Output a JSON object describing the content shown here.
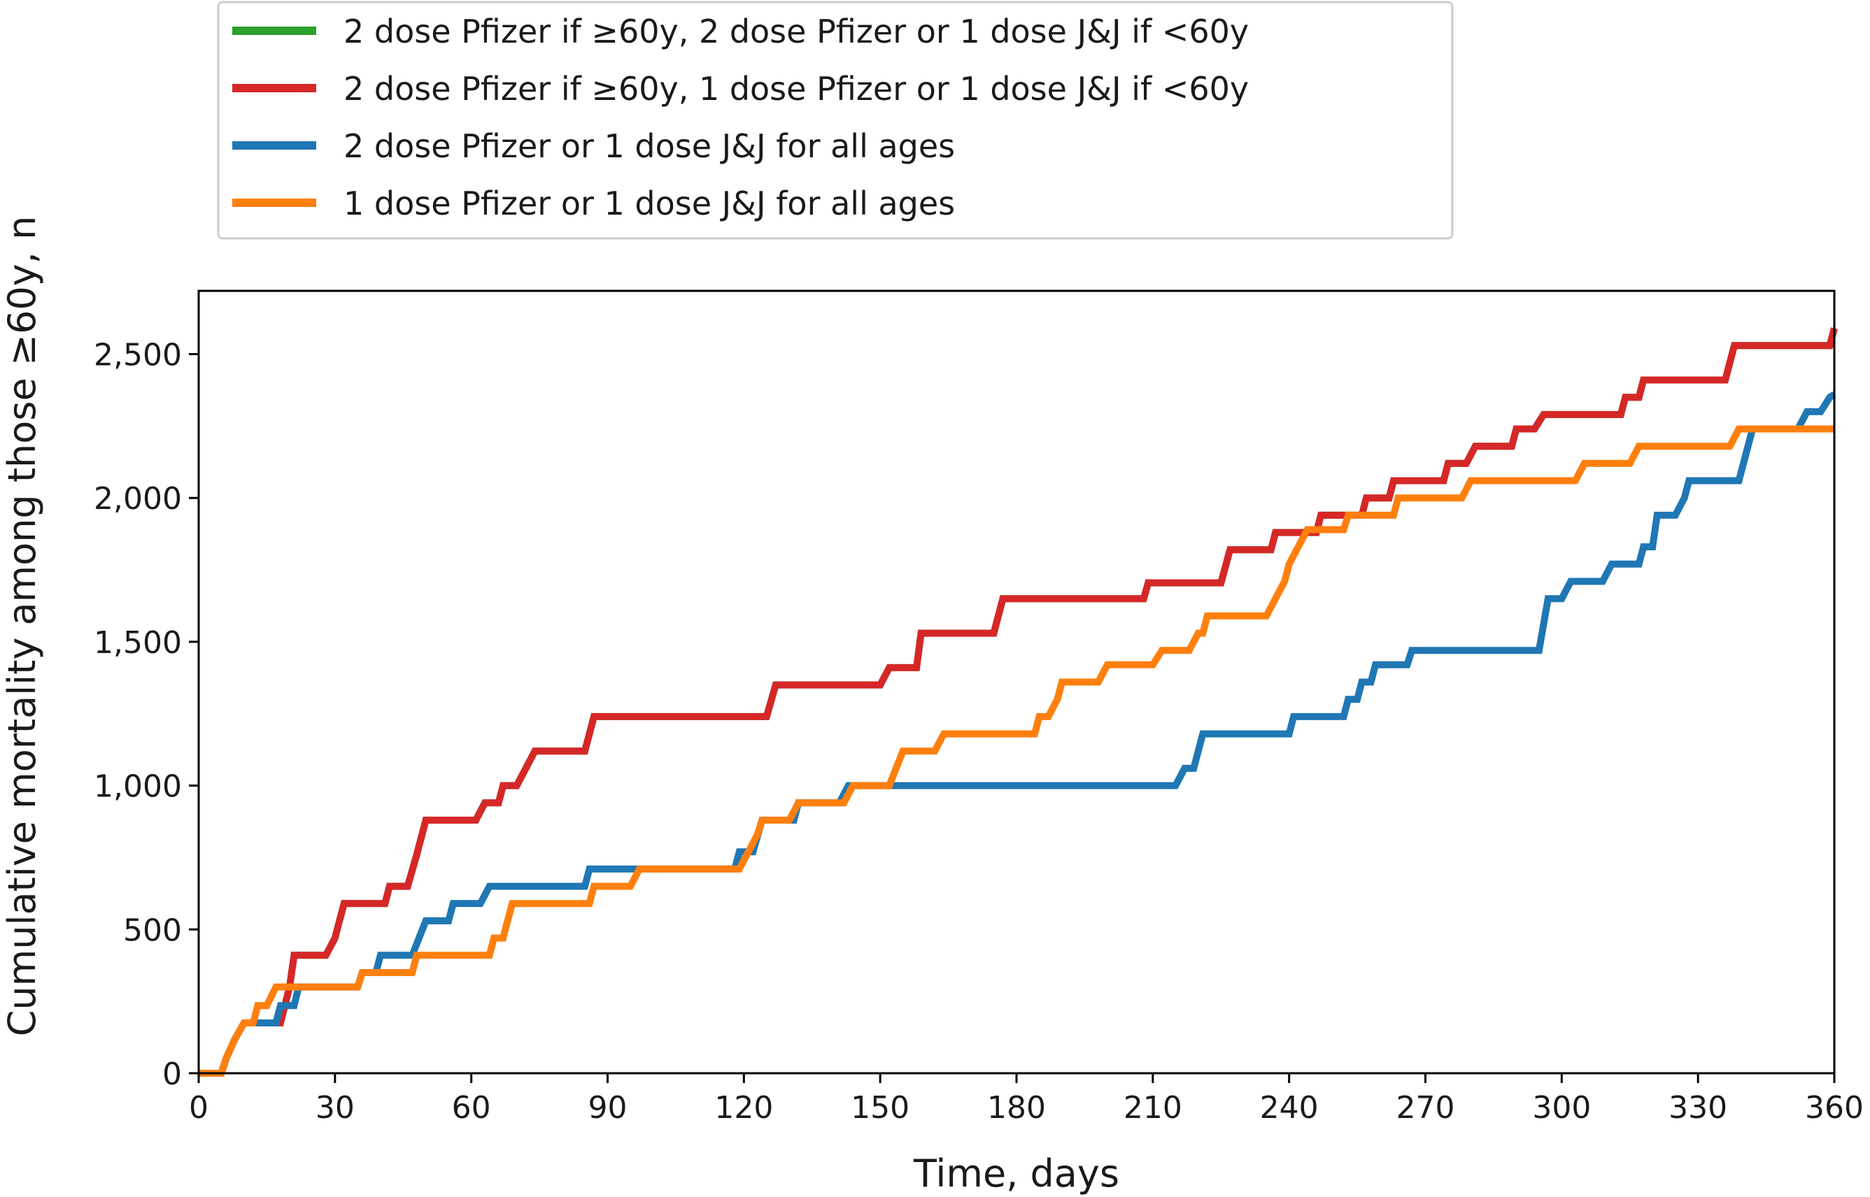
{
  "chart_data": {
    "type": "line",
    "title": "",
    "xlabel": "Time, days",
    "ylabel": "Cumulative mortality among those ≥60y, n",
    "xlim": [
      0,
      360
    ],
    "ylim": [
      0,
      2720
    ],
    "xticks": [
      0,
      30,
      60,
      90,
      120,
      150,
      180,
      210,
      240,
      270,
      300,
      330,
      360
    ],
    "yticks": [
      0,
      500,
      1000,
      1500,
      2000,
      2500
    ],
    "xtick_labels": [
      "0",
      "30",
      "60",
      "90",
      "120",
      "150",
      "180",
      "210",
      "240",
      "270",
      "300",
      "330",
      "360"
    ],
    "ytick_labels": [
      "0",
      "500",
      "1,000",
      "1,500",
      "2,000",
      "2,500"
    ],
    "grid": false,
    "legend_position": "top-left outside",
    "step": true,
    "series": [
      {
        "name": "2 dose Pfizer if ≥60y, 2 dose Pfizer or 1 dose J&J if <60y",
        "color": "#2ca02c",
        "points": [
          [
            0,
            0
          ],
          [
            5,
            0
          ],
          [
            6,
            50
          ],
          [
            8,
            120
          ],
          [
            10,
            175
          ],
          [
            18,
            175
          ],
          [
            20,
            300
          ],
          [
            21,
            410
          ],
          [
            28,
            410
          ],
          [
            30,
            470
          ],
          [
            32,
            590
          ],
          [
            41,
            590
          ],
          [
            42,
            650
          ],
          [
            46,
            650
          ],
          [
            48,
            760
          ],
          [
            50,
            880
          ],
          [
            61,
            880
          ],
          [
            63,
            940
          ],
          [
            66,
            940
          ],
          [
            67,
            1000
          ],
          [
            70,
            1000
          ],
          [
            72,
            1060
          ],
          [
            74,
            1120
          ],
          [
            85,
            1120
          ],
          [
            87,
            1240
          ],
          [
            125,
            1240
          ],
          [
            127,
            1350
          ],
          [
            150,
            1350
          ],
          [
            152,
            1410
          ],
          [
            158,
            1410
          ],
          [
            159,
            1530
          ],
          [
            175,
            1530
          ],
          [
            177,
            1650
          ],
          [
            208,
            1650
          ],
          [
            209,
            1705
          ],
          [
            225,
            1705
          ],
          [
            227,
            1820
          ],
          [
            236,
            1820
          ],
          [
            237,
            1880
          ],
          [
            246,
            1880
          ],
          [
            247,
            1940
          ],
          [
            256,
            1940
          ],
          [
            257,
            2000
          ],
          [
            262,
            2000
          ],
          [
            263,
            2060
          ],
          [
            274,
            2060
          ],
          [
            275,
            2120
          ],
          [
            279,
            2120
          ],
          [
            281,
            2180
          ],
          [
            289,
            2180
          ],
          [
            290,
            2240
          ],
          [
            294,
            2240
          ],
          [
            296,
            2290
          ],
          [
            313,
            2290
          ],
          [
            314,
            2350
          ],
          [
            317,
            2350
          ],
          [
            318,
            2410
          ],
          [
            336,
            2410
          ],
          [
            337,
            2470
          ],
          [
            338,
            2530
          ],
          [
            359,
            2530
          ],
          [
            360,
            2590
          ]
        ]
      },
      {
        "name": "2 dose Pfizer if ≥60y, 1 dose Pfizer or 1 dose J&J if <60y",
        "color": "#d62728",
        "points": [
          [
            0,
            0
          ],
          [
            5,
            0
          ],
          [
            6,
            50
          ],
          [
            8,
            120
          ],
          [
            10,
            175
          ],
          [
            18,
            175
          ],
          [
            20,
            300
          ],
          [
            21,
            410
          ],
          [
            28,
            410
          ],
          [
            30,
            470
          ],
          [
            32,
            590
          ],
          [
            41,
            590
          ],
          [
            42,
            650
          ],
          [
            46,
            650
          ],
          [
            48,
            760
          ],
          [
            50,
            880
          ],
          [
            61,
            880
          ],
          [
            63,
            940
          ],
          [
            66,
            940
          ],
          [
            67,
            1000
          ],
          [
            70,
            1000
          ],
          [
            72,
            1060
          ],
          [
            74,
            1120
          ],
          [
            85,
            1120
          ],
          [
            87,
            1240
          ],
          [
            125,
            1240
          ],
          [
            127,
            1350
          ],
          [
            150,
            1350
          ],
          [
            152,
            1410
          ],
          [
            158,
            1410
          ],
          [
            159,
            1530
          ],
          [
            175,
            1530
          ],
          [
            177,
            1650
          ],
          [
            208,
            1650
          ],
          [
            209,
            1705
          ],
          [
            225,
            1705
          ],
          [
            227,
            1820
          ],
          [
            236,
            1820
          ],
          [
            237,
            1880
          ],
          [
            246,
            1880
          ],
          [
            247,
            1940
          ],
          [
            256,
            1940
          ],
          [
            257,
            2000
          ],
          [
            262,
            2000
          ],
          [
            263,
            2060
          ],
          [
            274,
            2060
          ],
          [
            275,
            2120
          ],
          [
            279,
            2120
          ],
          [
            281,
            2180
          ],
          [
            289,
            2180
          ],
          [
            290,
            2240
          ],
          [
            294,
            2240
          ],
          [
            296,
            2290
          ],
          [
            313,
            2290
          ],
          [
            314,
            2350
          ],
          [
            317,
            2350
          ],
          [
            318,
            2410
          ],
          [
            336,
            2410
          ],
          [
            337,
            2470
          ],
          [
            338,
            2530
          ],
          [
            359,
            2530
          ],
          [
            360,
            2590
          ]
        ]
      },
      {
        "name": "2 dose Pfizer or 1 dose J&J for all ages",
        "color": "#1f77b4",
        "points": [
          [
            0,
            0
          ],
          [
            5,
            0
          ],
          [
            6,
            50
          ],
          [
            8,
            120
          ],
          [
            10,
            175
          ],
          [
            17,
            175
          ],
          [
            18,
            235
          ],
          [
            21,
            235
          ],
          [
            22,
            300
          ],
          [
            35,
            300
          ],
          [
            36,
            350
          ],
          [
            39,
            350
          ],
          [
            40,
            410
          ],
          [
            47,
            410
          ],
          [
            50,
            530
          ],
          [
            55,
            530
          ],
          [
            56,
            590
          ],
          [
            62,
            590
          ],
          [
            64,
            650
          ],
          [
            85,
            650
          ],
          [
            86,
            710
          ],
          [
            118,
            710
          ],
          [
            119,
            770
          ],
          [
            122,
            770
          ],
          [
            124,
            880
          ],
          [
            131,
            880
          ],
          [
            132,
            940
          ],
          [
            141,
            940
          ],
          [
            143,
            1000
          ],
          [
            215,
            1000
          ],
          [
            217,
            1060
          ],
          [
            219,
            1060
          ],
          [
            221,
            1180
          ],
          [
            240,
            1180
          ],
          [
            241,
            1240
          ],
          [
            252,
            1240
          ],
          [
            253,
            1300
          ],
          [
            255,
            1300
          ],
          [
            256,
            1360
          ],
          [
            258,
            1360
          ],
          [
            259,
            1420
          ],
          [
            266,
            1420
          ],
          [
            267,
            1470
          ],
          [
            295,
            1470
          ],
          [
            297,
            1650
          ],
          [
            300,
            1650
          ],
          [
            302,
            1710
          ],
          [
            309,
            1710
          ],
          [
            311,
            1770
          ],
          [
            317,
            1770
          ],
          [
            318,
            1830
          ],
          [
            320,
            1830
          ],
          [
            321,
            1940
          ],
          [
            325,
            1940
          ],
          [
            327,
            2000
          ],
          [
            328,
            2060
          ],
          [
            339,
            2060
          ],
          [
            341,
            2180
          ],
          [
            342,
            2240
          ],
          [
            352,
            2240
          ],
          [
            354,
            2300
          ],
          [
            357,
            2300
          ],
          [
            359,
            2350
          ],
          [
            360,
            2360
          ]
        ]
      },
      {
        "name": "1 dose Pfizer or 1 dose J&J for all ages",
        "color": "#ff7f0e",
        "points": [
          [
            0,
            0
          ],
          [
            5,
            0
          ],
          [
            6,
            50
          ],
          [
            8,
            120
          ],
          [
            10,
            175
          ],
          [
            12,
            175
          ],
          [
            13,
            235
          ],
          [
            15,
            235
          ],
          [
            17,
            300
          ],
          [
            35,
            300
          ],
          [
            36,
            350
          ],
          [
            47,
            350
          ],
          [
            48,
            410
          ],
          [
            64,
            410
          ],
          [
            65,
            470
          ],
          [
            67,
            470
          ],
          [
            69,
            590
          ],
          [
            86,
            590
          ],
          [
            87,
            650
          ],
          [
            95,
            650
          ],
          [
            97,
            710
          ],
          [
            119,
            710
          ],
          [
            121,
            770
          ],
          [
            123,
            830
          ],
          [
            124,
            880
          ],
          [
            130,
            880
          ],
          [
            132,
            940
          ],
          [
            142,
            940
          ],
          [
            144,
            1000
          ],
          [
            152,
            1000
          ],
          [
            155,
            1120
          ],
          [
            162,
            1120
          ],
          [
            164,
            1180
          ],
          [
            184,
            1180
          ],
          [
            185,
            1240
          ],
          [
            187,
            1240
          ],
          [
            189,
            1300
          ],
          [
            190,
            1360
          ],
          [
            198,
            1360
          ],
          [
            200,
            1420
          ],
          [
            210,
            1420
          ],
          [
            212,
            1470
          ],
          [
            218,
            1470
          ],
          [
            220,
            1530
          ],
          [
            221,
            1530
          ],
          [
            222,
            1590
          ],
          [
            235,
            1590
          ],
          [
            237,
            1650
          ],
          [
            239,
            1710
          ],
          [
            240,
            1770
          ],
          [
            242,
            1830
          ],
          [
            244,
            1890
          ],
          [
            252,
            1890
          ],
          [
            253,
            1940
          ],
          [
            263,
            1940
          ],
          [
            264,
            2000
          ],
          [
            278,
            2000
          ],
          [
            280,
            2060
          ],
          [
            303,
            2060
          ],
          [
            305,
            2120
          ],
          [
            315,
            2120
          ],
          [
            317,
            2180
          ],
          [
            337,
            2180
          ],
          [
            339,
            2240
          ],
          [
            360,
            2240
          ]
        ]
      }
    ]
  }
}
